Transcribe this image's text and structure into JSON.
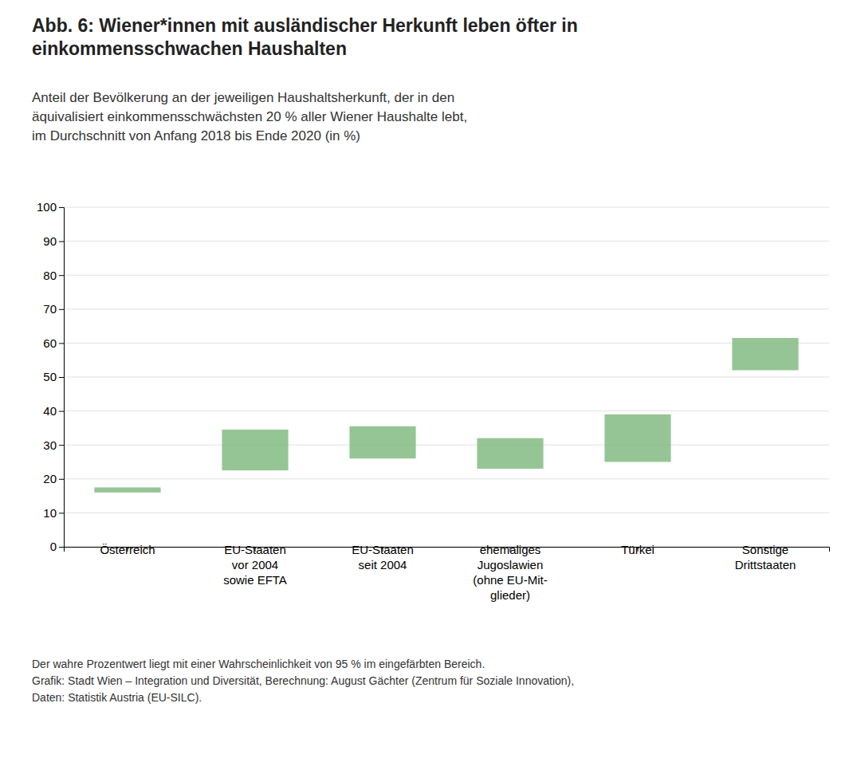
{
  "chart_data": {
    "type": "floating_bar",
    "title": "Abb. 6: Wiener*innen mit ausländischer Herkunft leben öfter in\neinkommensschwachen Haushalten",
    "subtitle": "Anteil der Bevölkerung an der jeweiligen Haushaltsherkunft, der in den\näquivalisiert einkommensschwächsten 20 % aller Wiener Haushalte lebt,\nim Durchschnitt von Anfang 2018 bis Ende 2020 (in %)",
    "footnote": "Der wahre Prozentwert liegt mit einer Wahrscheinlichkeit von 95 % im eingefärbten Bereich.\nGrafik: Stadt Wien – Integration und Diversität, Berechnung: August Gächter (Zentrum für Soziale Innovation),\nDaten: Statistik Austria (EU-SILC).",
    "categories": [
      "Österreich",
      "EU-Staaten\nvor 2004\nsowie EFTA",
      "EU-Staaten\nseit 2004",
      "ehemaliges\nJugoslawien\n(ohne EU-Mit-\nglieder)",
      "Türkei",
      "Sonstige\nDrittstaaten"
    ],
    "low": [
      16.0,
      22.5,
      26.0,
      23.0,
      25.0,
      52.0
    ],
    "high": [
      17.5,
      34.5,
      35.5,
      32.0,
      39.0,
      61.5
    ],
    "color": "#82bb82",
    "ylim": [
      0,
      100
    ],
    "yticks": [
      0,
      10,
      20,
      30,
      40,
      50,
      60,
      70,
      80,
      90,
      100
    ],
    "grid": true
  }
}
